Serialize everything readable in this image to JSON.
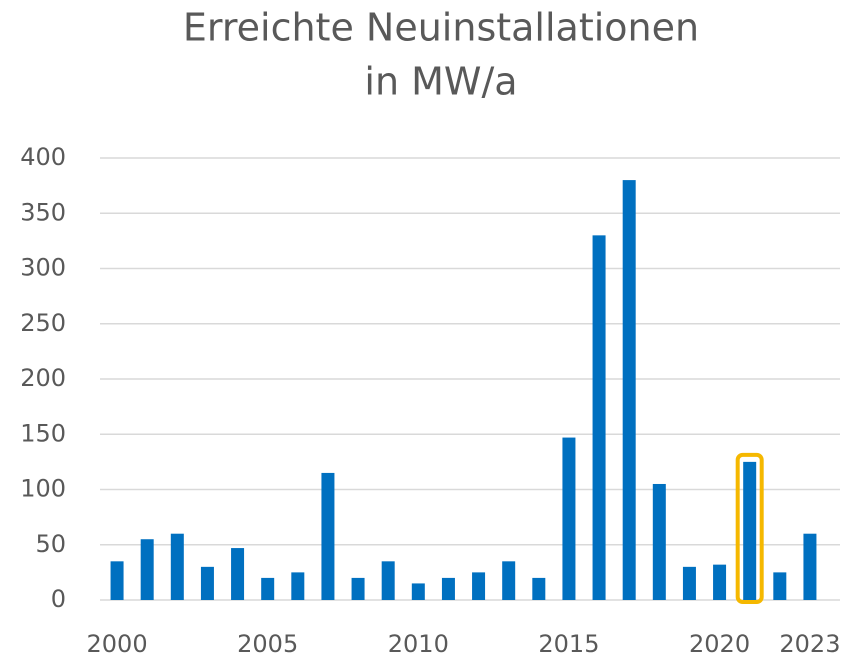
{
  "chart_data": {
    "type": "bar",
    "title": [
      "Erreichte Neuinstallationen",
      "in MW/a"
    ],
    "categories": [
      "2000",
      null,
      null,
      null,
      null,
      "2005",
      null,
      null,
      null,
      null,
      "2010",
      null,
      null,
      null,
      null,
      "2015",
      null,
      null,
      null,
      null,
      "2020",
      null,
      null,
      "2023"
    ],
    "values": [
      35,
      55,
      60,
      30,
      47,
      20,
      25,
      115,
      20,
      35,
      15,
      20,
      25,
      35,
      20,
      147,
      330,
      380,
      105,
      30,
      32,
      125,
      25,
      60
    ],
    "color": "#0070c0",
    "ylim": [
      0,
      400
    ],
    "yticks": [
      0,
      50,
      100,
      150,
      200,
      250,
      300,
      350,
      400
    ],
    "grid": true,
    "highlight_index": 21,
    "highlight_color": "#f5b800"
  }
}
